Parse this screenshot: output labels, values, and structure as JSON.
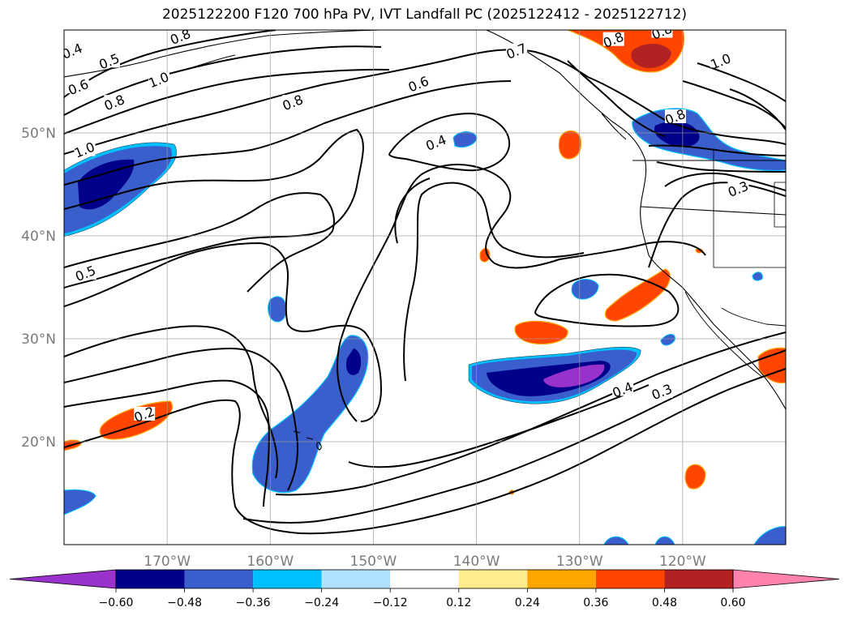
{
  "title": "2025122200 F120 700 hPa PV, IVT Landfall PC (2025122412 - 2025122712)",
  "chart_data": {
    "type": "map-contour",
    "title": "2025122200 F120 700 hPa PV, IVT Landfall PC (2025122412 - 2025122712)",
    "lon_range": [
      -180,
      -110
    ],
    "lat_range": [
      10,
      60
    ],
    "lon_ticks": [
      {
        "value": -170,
        "label": "170°W"
      },
      {
        "value": -160,
        "label": "160°W"
      },
      {
        "value": -150,
        "label": "150°W"
      },
      {
        "value": -140,
        "label": "140°W"
      },
      {
        "value": -130,
        "label": "130°W"
      },
      {
        "value": -120,
        "label": "120°W"
      }
    ],
    "lat_ticks": [
      {
        "value": 20,
        "label": "20°N"
      },
      {
        "value": 30,
        "label": "30°N"
      },
      {
        "value": 40,
        "label": "40°N"
      },
      {
        "value": 50,
        "label": "50°N"
      }
    ],
    "grid": true,
    "colorbar": {
      "levels": [
        -0.6,
        -0.48,
        -0.36,
        -0.24,
        -0.12,
        0.12,
        0.24,
        0.36,
        0.48,
        0.6
      ],
      "tick_labels": [
        "−0.60",
        "−0.48",
        "−0.36",
        "−0.24",
        "−0.12",
        "0.12",
        "0.24",
        "0.36",
        "0.48",
        "0.60"
      ],
      "colors": [
        "#9932cc",
        "#00008b",
        "#3a5fcd",
        "#00bfff",
        "#b0e2ff",
        "#ffffff",
        "#ffec8b",
        "#ffa500",
        "#ff4500",
        "#b22222",
        "#ff82ab"
      ],
      "extend": "both"
    },
    "contour_labels": [
      {
        "text": "0.4",
        "lon": -179.2,
        "lat": 57.9
      },
      {
        "text": "0.5",
        "lon": -175.6,
        "lat": 56.9
      },
      {
        "text": "0.6",
        "lon": -178.6,
        "lat": 54.4
      },
      {
        "text": "0.8",
        "lon": -175.1,
        "lat": 52.9
      },
      {
        "text": "1.0",
        "lon": -170.8,
        "lat": 55.1
      },
      {
        "text": "1.0",
        "lon": -178.0,
        "lat": 48.3
      },
      {
        "text": "0.8",
        "lon": -168.7,
        "lat": 59.3
      },
      {
        "text": "0.8",
        "lon": -157.8,
        "lat": 52.9
      },
      {
        "text": "0.6",
        "lon": -145.6,
        "lat": 54.7
      },
      {
        "text": "0.7",
        "lon": -136.1,
        "lat": 57.9
      },
      {
        "text": "0.4",
        "lon": -143.9,
        "lat": 49.0
      },
      {
        "text": "0.8",
        "lon": -126.7,
        "lat": 59.0
      },
      {
        "text": "0.8",
        "lon": -122.0,
        "lat": 59.8
      },
      {
        "text": "1.0",
        "lon": -116.3,
        "lat": 56.9
      },
      {
        "text": "0.8",
        "lon": -120.7,
        "lat": 51.5
      },
      {
        "text": "0.3",
        "lon": -114.6,
        "lat": 44.5
      },
      {
        "text": "0.5",
        "lon": -177.9,
        "lat": 36.3
      },
      {
        "text": "0.2",
        "lon": -172.2,
        "lat": 22.6
      },
      {
        "text": "0.4",
        "lon": -125.8,
        "lat": 25.0
      },
      {
        "text": "0.3",
        "lon": -122.0,
        "lat": 24.8
      }
    ]
  }
}
